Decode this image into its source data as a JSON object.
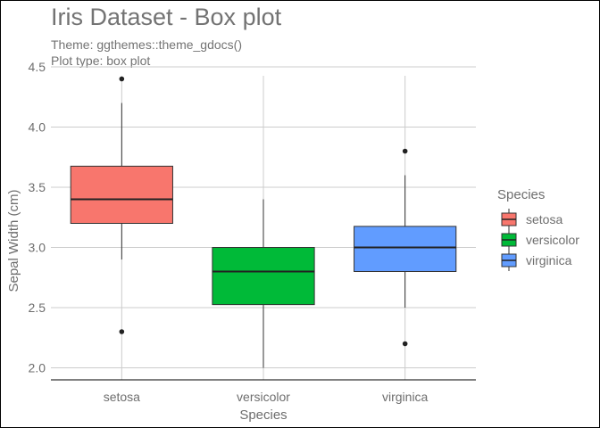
{
  "chart_data": {
    "type": "box",
    "title": "Iris Dataset - Box plot",
    "subtitle_lines": [
      "Theme: ggthemes::theme_gdocs()",
      "Plot type: box plot"
    ],
    "xlabel": "Species",
    "ylabel": "Sepal Width (cm)",
    "ylim": [
      1.9,
      4.5
    ],
    "yticks": [
      "2.0",
      "2.5",
      "3.0",
      "3.5",
      "4.0",
      "4.5"
    ],
    "grid": true,
    "legend": {
      "title": "Species",
      "position": "right"
    },
    "categories": [
      "setosa",
      "versicolor",
      "virginica"
    ],
    "series": [
      {
        "name": "setosa",
        "color": "#F8766D",
        "min": 2.9,
        "q1": 3.2,
        "median": 3.4,
        "q3": 3.675,
        "max": 4.2,
        "outliers": [
          4.4,
          2.3
        ]
      },
      {
        "name": "versicolor",
        "color": "#00BA38",
        "min": 2.0,
        "q1": 2.525,
        "median": 2.8,
        "q3": 3.0,
        "max": 3.4,
        "outliers": []
      },
      {
        "name": "virginica",
        "color": "#619CFF",
        "min": 2.5,
        "q1": 2.8,
        "median": 3.0,
        "q3": 3.175,
        "max": 3.6,
        "outliers": [
          3.8,
          2.2
        ]
      }
    ]
  }
}
